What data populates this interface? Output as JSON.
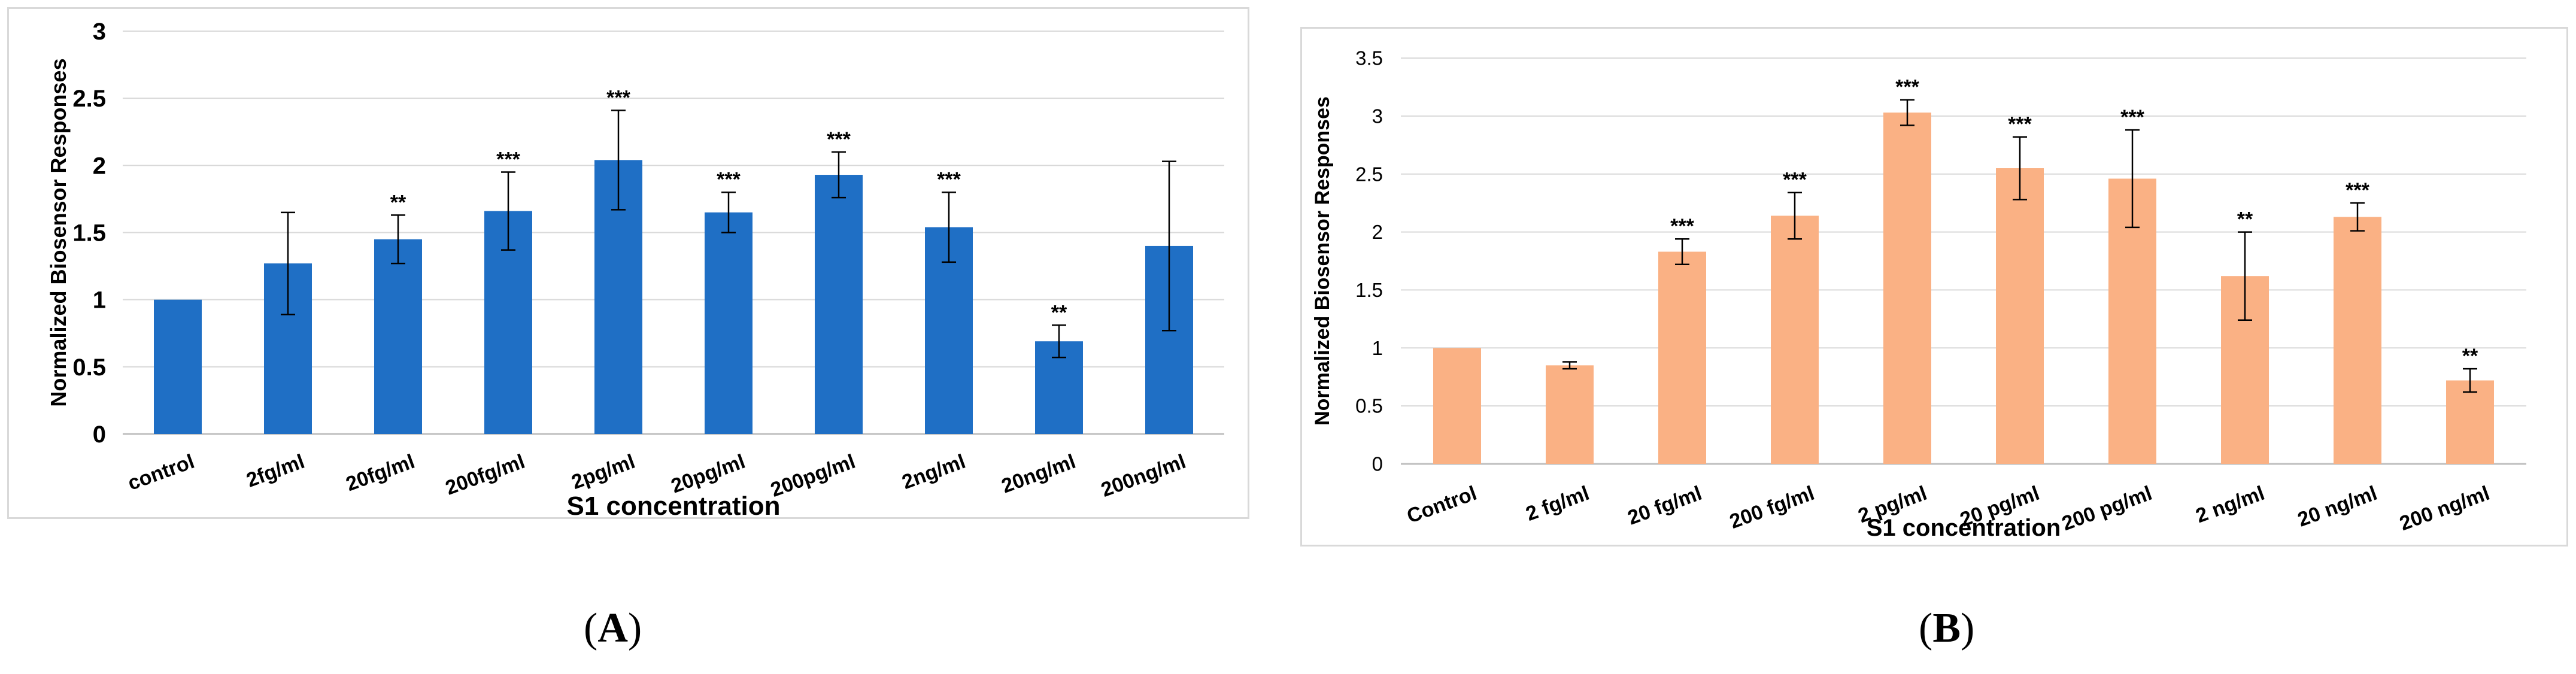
{
  "chart_data": [
    {
      "type": "bar",
      "panel": "A",
      "xlabel": "S1 concentration",
      "ylabel": "Normalized Biosensor Responses",
      "ylim": [
        0,
        3
      ],
      "yticks": [
        "0",
        "0.5",
        "1",
        "1.5",
        "2",
        "2.5",
        "3"
      ],
      "categories": [
        "control",
        "2fg/ml",
        "20fg/ml",
        "200fg/ml",
        "2pg/ml",
        "20pg/ml",
        "200pg/ml",
        "2ng/ml",
        "20ng/ml",
        "200ng/ml"
      ],
      "values": [
        1.0,
        1.27,
        1.45,
        1.66,
        2.04,
        1.65,
        1.93,
        1.54,
        0.69,
        1.4
      ],
      "errors": [
        0.0,
        0.38,
        0.18,
        0.29,
        0.37,
        0.15,
        0.17,
        0.26,
        0.12,
        0.63
      ],
      "significance": [
        "",
        "",
        "**",
        "***",
        "***",
        "***",
        "***",
        "***",
        "**",
        ""
      ],
      "color": "#1f6fc5",
      "grid": true
    },
    {
      "type": "bar",
      "panel": "B",
      "xlabel": "S1 concentration",
      "ylabel": "Normalized Biosensor Responses",
      "ylim": [
        0,
        3.5
      ],
      "yticks": [
        "0",
        "0.5",
        "1",
        "1.5",
        "2",
        "2.5",
        "3",
        "3.5"
      ],
      "categories": [
        "Control",
        "2 fg/ml",
        "20 fg/ml",
        "200 fg/ml",
        "2 pg/ml",
        "20 pg/ml",
        "200 pg/ml",
        "2 ng/ml",
        "20 ng/ml",
        "200 ng/ml"
      ],
      "values": [
        1.0,
        0.85,
        1.83,
        2.14,
        3.03,
        2.55,
        2.46,
        1.62,
        2.13,
        0.72
      ],
      "errors": [
        0.0,
        0.03,
        0.11,
        0.2,
        0.11,
        0.27,
        0.42,
        0.38,
        0.12,
        0.1
      ],
      "significance": [
        "",
        "",
        "***",
        "***",
        "***",
        "***",
        "***",
        "**",
        "***",
        "**"
      ],
      "color": "#fab184",
      "grid": true
    }
  ],
  "panel_labels": [
    "A",
    "B"
  ]
}
